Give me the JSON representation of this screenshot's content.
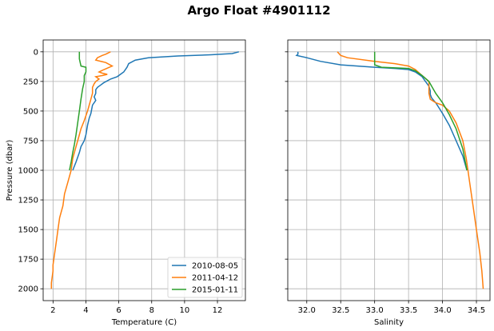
{
  "figure_title": "Argo Float #4901112",
  "colors": {
    "2010-08-05": "#1f77b4",
    "2011-04-12": "#ff7f0e",
    "2015-01-11": "#2ca02c",
    "grid": "#b0b0b0"
  },
  "chart_data": [
    {
      "type": "line",
      "xlabel": "Temperature (C)",
      "ylabel": "Pressure (dbar)",
      "xlim": [
        1.4,
        13.7
      ],
      "ylim": [
        2100,
        -100
      ],
      "xticks": [
        2,
        4,
        6,
        8,
        10,
        12
      ],
      "yticks": [
        0,
        250,
        500,
        750,
        1000,
        1250,
        1500,
        1750,
        2000
      ],
      "grid": true,
      "legend": "lower-right",
      "series": [
        {
          "name": "2010-08-05",
          "color": "#1f77b4",
          "x": [
            13.3,
            12.9,
            11.6,
            9.6,
            7.8,
            7.0,
            6.6,
            6.5,
            6.3,
            5.9,
            5.5,
            5.1,
            4.9,
            4.8,
            4.7,
            4.6,
            4.6,
            4.5,
            4.6,
            4.4,
            4.3,
            4.2,
            4.1,
            4.0,
            3.9,
            3.7,
            3.6,
            3.4,
            3.2
          ],
          "y": [
            0,
            15,
            25,
            35,
            50,
            70,
            100,
            130,
            170,
            210,
            230,
            260,
            280,
            290,
            300,
            320,
            350,
            380,
            410,
            450,
            520,
            560,
            620,
            700,
            750,
            800,
            850,
            930,
            1000
          ]
        },
        {
          "name": "2011-04-12",
          "color": "#ff7f0e",
          "x": [
            5.5,
            5.2,
            5.0,
            4.7,
            4.6,
            5.2,
            5.6,
            5.1,
            4.8,
            5.0,
            5.3,
            5.0,
            4.6,
            4.8,
            4.6,
            4.5,
            4.4,
            4.4,
            4.3,
            4.2,
            4.1,
            3.9,
            3.7,
            3.6,
            3.4,
            3.2,
            3.1,
            2.9,
            2.7,
            2.6,
            2.4,
            2.3,
            2.2,
            2.1,
            2.0,
            2.0,
            1.9,
            1.9
          ],
          "y": [
            0,
            20,
            30,
            50,
            70,
            90,
            120,
            150,
            170,
            180,
            190,
            200,
            210,
            230,
            250,
            270,
            300,
            350,
            400,
            450,
            500,
            580,
            650,
            700,
            800,
            900,
            1000,
            1100,
            1200,
            1300,
            1400,
            1500,
            1600,
            1700,
            1800,
            1850,
            1950,
            2000
          ]
        },
        {
          "name": "2015-01-11",
          "color": "#2ca02c",
          "x": [
            3.6,
            3.6,
            3.7,
            4.0,
            4.0,
            3.9,
            3.9,
            3.8,
            3.7,
            3.6,
            3.5,
            3.4,
            3.3,
            3.2,
            3.1,
            3.0
          ],
          "y": [
            0,
            60,
            120,
            130,
            170,
            200,
            250,
            310,
            400,
            500,
            600,
            700,
            780,
            850,
            930,
            1000
          ]
        }
      ]
    },
    {
      "type": "line",
      "xlabel": "Salinity",
      "ylabel": "",
      "xlim": [
        31.72,
        34.7
      ],
      "ylim": [
        2100,
        -100
      ],
      "xticks": [
        32.0,
        32.5,
        33.0,
        33.5,
        34.0,
        34.5
      ],
      "xticklabels": [
        "32.0",
        "32.5",
        "33.0",
        "33.5",
        "34.0",
        "34.5"
      ],
      "grid": true,
      "series": [
        {
          "name": "2010-08-05",
          "color": "#1f77b4",
          "x": [
            31.87,
            31.87,
            31.85,
            32.0,
            32.2,
            32.5,
            33.0,
            33.3,
            33.5,
            33.6,
            33.7,
            33.75,
            33.8,
            33.82,
            33.82,
            33.84,
            33.9,
            34.0,
            34.1,
            34.2,
            34.3,
            34.36
          ],
          "y": [
            0,
            20,
            30,
            50,
            80,
            110,
            130,
            140,
            150,
            170,
            210,
            250,
            290,
            330,
            360,
            390,
            430,
            520,
            620,
            750,
            880,
            1000
          ]
        },
        {
          "name": "2011-04-12",
          "color": "#ff7f0e",
          "x": [
            32.45,
            32.5,
            32.6,
            33.0,
            33.3,
            33.5,
            33.6,
            33.7,
            33.8,
            33.8,
            33.8,
            33.82,
            33.9,
            34.0,
            34.1,
            34.2,
            34.3,
            34.35,
            34.4,
            34.45,
            34.5,
            34.55,
            34.58,
            34.6
          ],
          "y": [
            0,
            30,
            50,
            80,
            100,
            120,
            150,
            200,
            250,
            300,
            350,
            400,
            430,
            450,
            500,
            600,
            750,
            900,
            1100,
            1300,
            1500,
            1700,
            1850,
            2000
          ]
        },
        {
          "name": "2015-01-11",
          "color": "#2ca02c",
          "x": [
            33.0,
            33.0,
            33.0,
            33.1,
            33.5,
            33.6,
            33.7,
            33.8,
            33.85,
            33.9,
            34.0,
            34.1,
            34.2,
            34.3,
            34.36
          ],
          "y": [
            0,
            60,
            110,
            130,
            140,
            160,
            200,
            250,
            300,
            350,
            430,
            530,
            650,
            820,
            1000
          ]
        }
      ]
    }
  ]
}
